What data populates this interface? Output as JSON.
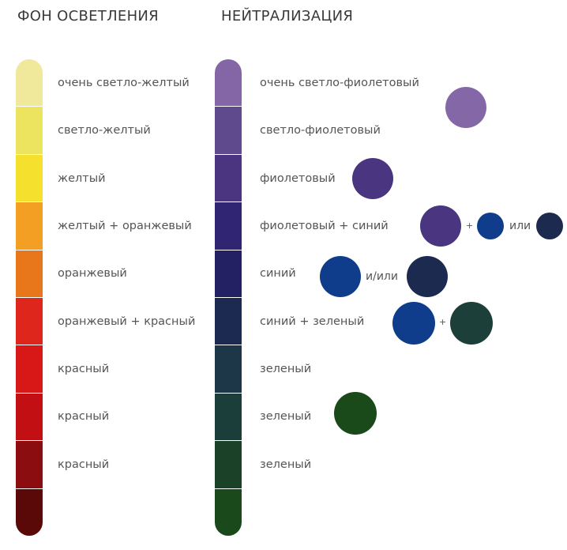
{
  "left": {
    "heading": "ФОН ОСВЕТЛЕНИЯ",
    "segments": [
      {
        "label": "очень светло-желтый",
        "color": "#f0e89a"
      },
      {
        "label": "светло-желтый",
        "color": "#ece35f"
      },
      {
        "label": "желтый",
        "color": "#f5e02e"
      },
      {
        "label": "желтый + оранжевый",
        "color": "#f29f24"
      },
      {
        "label": "оранжевый",
        "color": "#e8771c"
      },
      {
        "label": "оранжевый + красный",
        "color": "#de261c"
      },
      {
        "label": "красный",
        "color": "#d81816"
      },
      {
        "label": "красный",
        "color": "#c20f13"
      },
      {
        "label": "красный",
        "color": "#8b0d10"
      },
      {
        "label": "",
        "color": "#5a0808"
      }
    ]
  },
  "right": {
    "heading": "НЕЙТРАЛИЗАЦИЯ",
    "segments": [
      {
        "label": "очень светло-фиолетовый",
        "color": "#8466a6"
      },
      {
        "label": "светло-фиолетовый",
        "color": "#5e4a8c"
      },
      {
        "label": "фиолетовый",
        "color": "#4b3580"
      },
      {
        "label": "фиолетовый + синий",
        "color": "#302572"
      },
      {
        "label": "синий",
        "color": "#232064"
      },
      {
        "label": "синий + зеленый",
        "color": "#1c2a52"
      },
      {
        "label": "зеленый",
        "color": "#1d3648"
      },
      {
        "label": "зеленый",
        "color": "#1c3e3a"
      },
      {
        "label": "зеленый",
        "color": "#1b4128"
      },
      {
        "label": "",
        "color": "#1a4a1c"
      }
    ]
  },
  "swatches": {
    "row0": {
      "color": "#8467a6"
    },
    "row2": {
      "color": "#4a3580"
    },
    "row3": {
      "a": "#4a3580",
      "plus": "+",
      "b": "#0f3d8c",
      "or": "или",
      "c": "#1c2a4f"
    },
    "row4": {
      "a": "#0f3d8c",
      "andor": "и/или",
      "b": "#1c2a4f"
    },
    "row5": {
      "a": "#0f3d8c",
      "plus": "+",
      "b": "#1c3f3a"
    },
    "row7": {
      "color": "#1a4a1a"
    }
  }
}
